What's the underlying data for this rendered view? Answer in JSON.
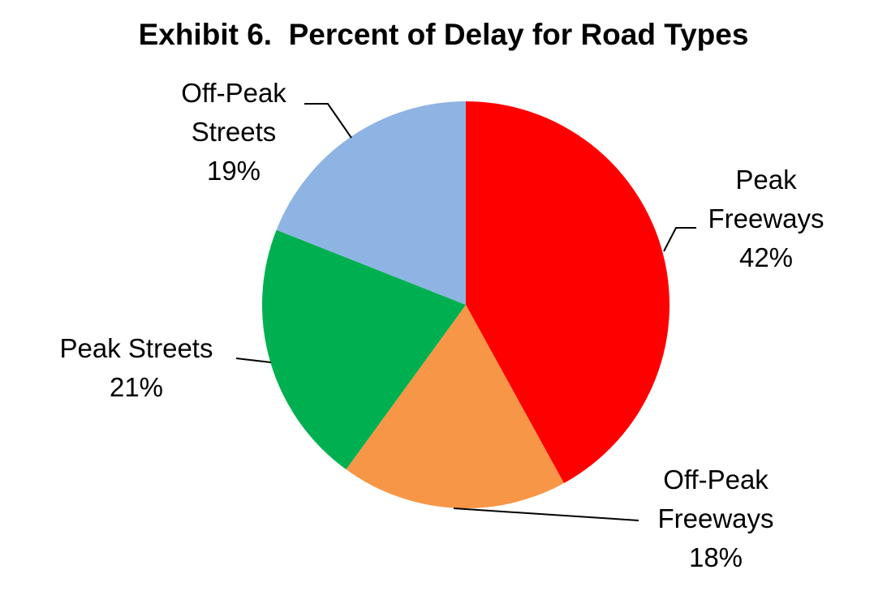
{
  "chart_data": {
    "type": "pie",
    "title": "Exhibit 6.  Percent of Delay for Road Types",
    "slices": [
      {
        "label": "Peak Freeways",
        "value": 42,
        "display": "42%",
        "color": "#ff0000"
      },
      {
        "label": "Off-Peak Freeways",
        "value": 18,
        "display": "18%",
        "color": "#f79646"
      },
      {
        "label": "Peak Streets",
        "value": 21,
        "display": "21%",
        "color": "#00b050"
      },
      {
        "label": "Off-Peak Streets",
        "value": 19,
        "display": "19%",
        "color": "#8eb4e3"
      }
    ],
    "data_label_lines": [
      [
        "Peak",
        "Freeways",
        "42%"
      ],
      [
        "Off-Peak",
        "Freeways",
        "18%"
      ],
      [
        "Peak Streets",
        "21%"
      ],
      [
        "Off-Peak",
        "Streets",
        "19%"
      ]
    ],
    "start_angle": "12 o'clock",
    "direction": "clockwise",
    "legend": "none",
    "leader_color": "#000000"
  }
}
